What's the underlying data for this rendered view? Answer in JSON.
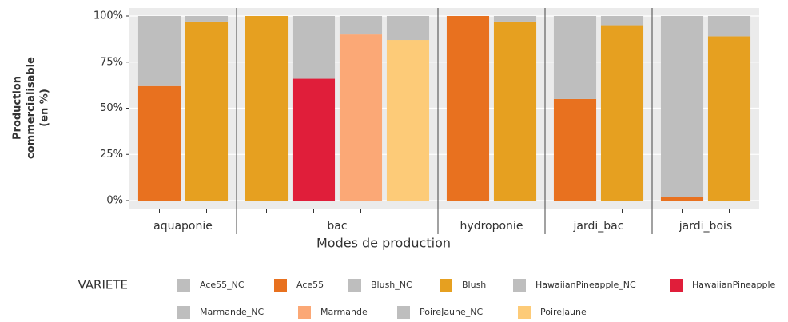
{
  "chart_data": {
    "type": "bar",
    "stacked": true,
    "ylabel": [
      "Production",
      "commercialisable",
      "(en %)"
    ],
    "xlabel": "Modes de production",
    "legend_title": "VARIETE",
    "ylim": [
      0,
      100
    ],
    "yticks": [
      {
        "value": 0,
        "label": "0%"
      },
      {
        "value": 25,
        "label": "25%"
      },
      {
        "value": 50,
        "label": "50%"
      },
      {
        "value": 75,
        "label": "75%"
      },
      {
        "value": 100,
        "label": "100%"
      }
    ],
    "grid": true,
    "series": [
      {
        "name": "Ace55_NC",
        "color": "#bebebe"
      },
      {
        "name": "Ace55",
        "color": "#e8711f"
      },
      {
        "name": "Blush_NC",
        "color": "#bebebe"
      },
      {
        "name": "Blush",
        "color": "#e6a020"
      },
      {
        "name": "HawaiianPineapple_NC",
        "color": "#bebebe"
      },
      {
        "name": "HawaiianPineapple",
        "color": "#e01e3a"
      },
      {
        "name": "Marmande_NC",
        "color": "#bebebe"
      },
      {
        "name": "Marmande",
        "color": "#fba876"
      },
      {
        "name": "PoireJaune_NC",
        "color": "#bebebe"
      },
      {
        "name": "PoireJaune",
        "color": "#fdcb78"
      }
    ],
    "facets": [
      {
        "label": "aquaponie",
        "categories": [
          null,
          null
        ],
        "values": [
          [
            38,
            null
          ],
          [
            62,
            null
          ],
          [
            null,
            3
          ],
          [
            null,
            97
          ],
          [
            null,
            null
          ],
          [
            null,
            null
          ],
          [
            null,
            null
          ],
          [
            null,
            null
          ],
          [
            null,
            null
          ],
          [
            null,
            null
          ]
        ]
      },
      {
        "label": "bac",
        "categories": [
          null,
          null,
          null,
          null
        ],
        "values": [
          [
            null,
            null,
            null,
            null
          ],
          [
            null,
            null,
            null,
            null
          ],
          [
            0,
            null,
            null,
            null
          ],
          [
            100,
            null,
            null,
            null
          ],
          [
            null,
            34,
            null,
            null
          ],
          [
            null,
            66,
            null,
            null
          ],
          [
            null,
            null,
            10,
            null
          ],
          [
            null,
            null,
            90,
            null
          ],
          [
            null,
            null,
            null,
            13
          ],
          [
            null,
            null,
            null,
            87
          ]
        ]
      },
      {
        "label": "hydroponie",
        "categories": [
          null,
          null
        ],
        "values": [
          [
            0,
            null
          ],
          [
            100,
            null
          ],
          [
            null,
            3
          ],
          [
            null,
            97
          ],
          [
            null,
            null
          ],
          [
            null,
            null
          ],
          [
            null,
            null
          ],
          [
            null,
            null
          ],
          [
            null,
            null
          ],
          [
            null,
            null
          ]
        ]
      },
      {
        "label": "jardi_bac",
        "categories": [
          null,
          null
        ],
        "values": [
          [
            45,
            null
          ],
          [
            55,
            null
          ],
          [
            null,
            5
          ],
          [
            null,
            95
          ],
          [
            null,
            null
          ],
          [
            null,
            null
          ],
          [
            null,
            null
          ],
          [
            null,
            null
          ],
          [
            null,
            null
          ],
          [
            null,
            null
          ]
        ]
      },
      {
        "label": "jardi_bois",
        "categories": [
          null,
          null
        ],
        "values": [
          [
            98,
            null
          ],
          [
            2,
            null
          ],
          [
            null,
            11
          ],
          [
            null,
            89
          ],
          [
            null,
            null
          ],
          [
            null,
            null
          ],
          [
            null,
            null
          ],
          [
            null,
            null
          ],
          [
            null,
            null
          ],
          [
            null,
            null
          ]
        ]
      }
    ]
  }
}
